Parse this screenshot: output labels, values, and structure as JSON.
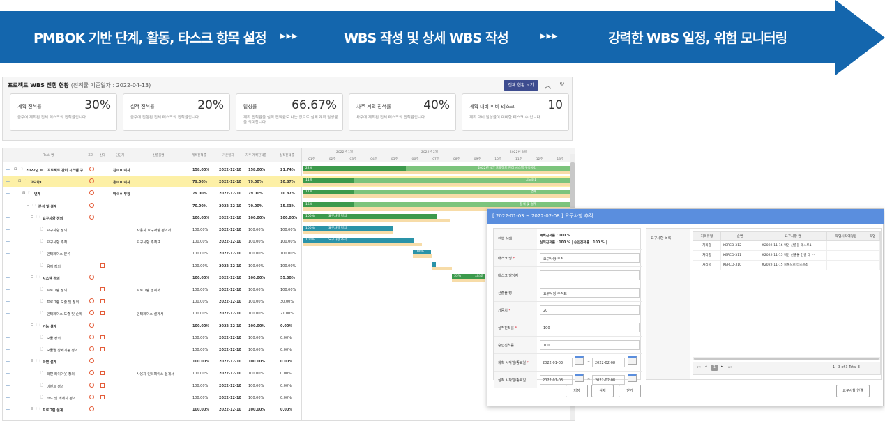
{
  "banner": {
    "color": "#1466ad",
    "step1": "PMBOK 기반 단계, 활동, 타스크 항목 설정",
    "sep1": "▸▸▸",
    "step2": "WBS 작성 및 상세 WBS 작성",
    "sep2": "▸▸▸",
    "step3": "강력한 WBS 일정, 위험 모니터링"
  },
  "status": {
    "title": "프로젝트 WBS 진행 현황",
    "subtitle": "(진척률 기준일자 : 2022-04-13)",
    "view_all_button": "전체 현황 보기",
    "collapse_icon": "chevron-up-icon",
    "refresh_icon": "refresh-icon",
    "cards": [
      {
        "label": "계획 진척률",
        "value": "30%",
        "desc": "금주에 계획된 전체 테스크의 진척률입니다."
      },
      {
        "label": "실적 진척률",
        "value": "20%",
        "desc": "금주에 진행된 전체 테스크의 진척률입니다."
      },
      {
        "label": "달성률",
        "value": "66.67%",
        "desc": "계획 진척률을 실적 진척률로 나눈 값으로 실제 계획 달성률을 의미합니다."
      },
      {
        "label": "차주 계획 진척률",
        "value": "40%",
        "desc": "차주에 계획된 전체 테스크의 진척률입니다."
      },
      {
        "label": "계획 대비 미비 테스크",
        "value": "10",
        "desc": "계획 대비 달성률이 미비한 테스크 수 입니다."
      }
    ]
  },
  "gantt": {
    "columns": [
      "Task 명",
      "초과",
      "산대",
      "담당자",
      "산출물명",
      "계획진척률",
      "기준일자",
      "차주 계획진척률",
      "실적진척률"
    ],
    "months": [
      "2022년 1월",
      "2022년 2월",
      "2022년 3월"
    ],
    "weeks": [
      "01주",
      "02주",
      "03주",
      "04주",
      "05주",
      "06주",
      "07주",
      "08주",
      "09주",
      "10주",
      "11주",
      "12주",
      "13주"
    ],
    "rows": [
      {
        "name": "2022년 ICT 프로젝트 관리 시스템 구",
        "indent": 0,
        "type": "folder",
        "clock": true,
        "cal": false,
        "owner": "김ㅇㅇ 이사",
        "output": "",
        "plan": "158.00%",
        "date": "2022-12-10",
        "next": "158.00%",
        "actual": "21.74%",
        "highlight": false
      },
      {
        "name": "고도화1",
        "indent": 1,
        "type": "folder",
        "clock": true,
        "cal": false,
        "owner": "홍ㅇㅇ 이사",
        "output": "",
        "plan": "79.00%",
        "date": "2022-12-10",
        "next": "79.00%",
        "actual": "10.87%",
        "highlight": true
      },
      {
        "name": "연계",
        "indent": 2,
        "type": "folder",
        "clock": true,
        "cal": false,
        "owner": "박ㅇㅇ 부장",
        "output": "",
        "plan": "79.00%",
        "date": "2022-12-10",
        "next": "79.00%",
        "actual": "10.87%",
        "highlight": false
      },
      {
        "name": "분석 및 설계",
        "indent": 3,
        "type": "folder",
        "clock": true,
        "cal": false,
        "owner": "",
        "output": "",
        "plan": "70.00%",
        "date": "2022-12-10",
        "next": "70.00%",
        "actual": "15.53%",
        "highlight": false
      },
      {
        "name": "요구사항 정의",
        "indent": 4,
        "type": "folder",
        "clock": true,
        "cal": false,
        "owner": "",
        "output": "",
        "plan": "100.00%",
        "date": "2022-12-10",
        "next": "100.00%",
        "actual": "100.00%",
        "highlight": false
      },
      {
        "name": "요구사항 정의",
        "indent": 5,
        "type": "file",
        "clock": false,
        "cal": false,
        "owner": "",
        "output": "사용자 요구사항 정의서",
        "plan": "100.00%",
        "date": "2022-12-10",
        "next": "100.00%",
        "actual": "100.00%",
        "highlight": false
      },
      {
        "name": "요구사항 추적",
        "indent": 5,
        "type": "file",
        "clock": false,
        "cal": false,
        "owner": "",
        "output": "요구사항 추적표",
        "plan": "100.00%",
        "date": "2022-12-10",
        "next": "100.00%",
        "actual": "100.00%",
        "highlight": false
      },
      {
        "name": "인터페이스 분석",
        "indent": 5,
        "type": "file",
        "clock": false,
        "cal": false,
        "owner": "",
        "output": "",
        "plan": "100.00%",
        "date": "2022-12-10",
        "next": "100.00%",
        "actual": "100.00%",
        "highlight": false
      },
      {
        "name": "용어 정의",
        "indent": 5,
        "type": "file",
        "clock": false,
        "cal": true,
        "owner": "",
        "output": "",
        "plan": "100.00%",
        "date": "2022-12-10",
        "next": "100.00%",
        "actual": "100.00%",
        "highlight": false
      },
      {
        "name": "시스템 정의",
        "indent": 4,
        "type": "folder",
        "clock": true,
        "cal": false,
        "owner": "",
        "output": "",
        "plan": "100.00%",
        "date": "2022-12-10",
        "next": "100.00%",
        "actual": "55.30%",
        "highlight": false
      },
      {
        "name": "프로그램 정의",
        "indent": 5,
        "type": "file",
        "clock": false,
        "cal": true,
        "owner": "",
        "output": "프로그램 명세서",
        "plan": "100.00%",
        "date": "2022-12-10",
        "next": "100.00%",
        "actual": "100.00%",
        "highlight": false
      },
      {
        "name": "프로그램 도출 및 정의",
        "indent": 5,
        "type": "file",
        "clock": true,
        "cal": true,
        "owner": "",
        "output": "",
        "plan": "100.00%",
        "date": "2022-12-10",
        "next": "100.00%",
        "actual": "30.00%",
        "highlight": false
      },
      {
        "name": "인터페이스 도출 및 준비",
        "indent": 5,
        "type": "file",
        "clock": true,
        "cal": true,
        "owner": "",
        "output": "인터페이스 설계서",
        "plan": "100.00%",
        "date": "2022-12-10",
        "next": "100.00%",
        "actual": "21.00%",
        "highlight": false
      },
      {
        "name": "기능 설계",
        "indent": 4,
        "type": "folder",
        "clock": true,
        "cal": false,
        "owner": "",
        "output": "",
        "plan": "100.00%",
        "date": "2022-12-10",
        "next": "100.00%",
        "actual": "0.00%",
        "highlight": false
      },
      {
        "name": "모듈 정의",
        "indent": 5,
        "type": "file",
        "clock": true,
        "cal": true,
        "owner": "",
        "output": "",
        "plan": "100.00%",
        "date": "2022-12-10",
        "next": "100.00%",
        "actual": "0.00%",
        "highlight": false
      },
      {
        "name": "모듈별 상세기능 정의",
        "indent": 5,
        "type": "file",
        "clock": true,
        "cal": true,
        "owner": "",
        "output": "",
        "plan": "100.00%",
        "date": "2022-12-10",
        "next": "100.00%",
        "actual": "0.00%",
        "highlight": false
      },
      {
        "name": "화면 설계",
        "indent": 4,
        "type": "folder",
        "clock": true,
        "cal": false,
        "owner": "",
        "output": "",
        "plan": "100.00%",
        "date": "2022-12-10",
        "next": "100.00%",
        "actual": "0.00%",
        "highlight": false
      },
      {
        "name": "화면 레이아웃 정의",
        "indent": 5,
        "type": "file",
        "clock": true,
        "cal": true,
        "owner": "",
        "output": "사용자 인터페이스 설계서",
        "plan": "100.00%",
        "date": "2022-12-10",
        "next": "100.00%",
        "actual": "0.00%",
        "highlight": false
      },
      {
        "name": "이벤트 정의",
        "indent": 5,
        "type": "file",
        "clock": true,
        "cal": true,
        "owner": "",
        "output": "",
        "plan": "100.00%",
        "date": "2022-12-10",
        "next": "100.00%",
        "actual": "0.00%",
        "highlight": false
      },
      {
        "name": "코드 및 메세지 정의",
        "indent": 5,
        "type": "file",
        "clock": true,
        "cal": true,
        "owner": "",
        "output": "",
        "plan": "100.00%",
        "date": "2022-12-10",
        "next": "100.00%",
        "actual": "0.00%",
        "highlight": false
      },
      {
        "name": "프로그램 설계",
        "indent": 4,
        "type": "folder",
        "clock": true,
        "cal": false,
        "owner": "",
        "output": "",
        "plan": "100.00%",
        "date": "2022-12-10",
        "next": "100.00%",
        "actual": "0.00%",
        "highlight": false
      }
    ],
    "bars": [
      {
        "label": "22%",
        "text": "2022년 ICT 프로젝트 관리 시스템 구축사업",
        "color": "#3c9a4c",
        "light": "#7cc47c"
      },
      {
        "label": "11%",
        "text": "고도화1",
        "color": "#3c9a4c",
        "light": "#7cc47c"
      },
      {
        "label": "11%",
        "text": "연계",
        "color": "#3c9a4c",
        "light": "#7cc47c"
      },
      {
        "label": "16%",
        "text": "분석 및 설계",
        "color": "#3c9a4c",
        "light": "#7cc47c"
      },
      {
        "label": "100%",
        "text": "요구사항 정의",
        "color": "#3c9a4c",
        "light": ""
      },
      {
        "label": "100%",
        "text": "요구사항 정의",
        "color": "#2a93a8",
        "light": ""
      },
      {
        "label": "100%",
        "text": "요구사항 추적",
        "color": "#2a93a8",
        "light": ""
      },
      {
        "label": "100%",
        "text": "",
        "color": "#2a93a8",
        "light": ""
      },
      {
        "label": "",
        "text": "",
        "color": "#2a93a8",
        "light": ""
      },
      {
        "label": "55%",
        "text": "시스템 정의",
        "color": "#3c9a4c",
        "light": ""
      }
    ]
  },
  "modal": {
    "title": "[ 2022-01-03 ~ 2022-02-08 ]  요구사항 추적",
    "progress_label": "진행 상태",
    "progress_line1": "계획진척률 : 100 %",
    "progress_line2": "실적진척률 : 100 % | 승인진척률 : 100 % |",
    "task_name_label": "태스크 명",
    "task_name_value": "요구사항 추적",
    "owner_label": "태스크 담당자",
    "owner_value": "",
    "output_label": "산출물 명",
    "output_value": "요구사항 추적표",
    "weight_label": "가중치",
    "weight_value": "20",
    "actual_label": "실적진척률",
    "actual_value": "100",
    "approve_label": "승인진척률",
    "approve_value": "100",
    "plan_dates_label": "계획 시작일/종료일",
    "plan_start": "2022-01-03",
    "plan_end": "2022-02-08",
    "actual_dates_label": "실적 시작일/종료일",
    "actual_start": "2022-01-03",
    "actual_end": "2022-02-08",
    "tilde": "~",
    "req_list_label": "요구사항 목록",
    "table_headers": [
      "처리유형",
      "순번",
      "요구사항 명",
      "작업시작예정일",
      "작업"
    ],
    "table_rows": [
      [
        "처리중",
        "KEPCO-312",
        "#2022-11-16 확인 산출물 테스트1"
      ],
      [
        "처리중",
        "KEPCO-311",
        "#2022-11-15 확인 산출물 연결 테 ···"
      ],
      [
        "처리중",
        "KEPCO-310",
        "#2022-11-15 중복으로 테스트4"
      ]
    ],
    "pager_text": "1 - 3 of 3   Total 3",
    "pager_page": "1",
    "save_button": "저장",
    "delete_button": "삭제",
    "close_button": "닫기",
    "link_button": "요구사항 연결"
  }
}
